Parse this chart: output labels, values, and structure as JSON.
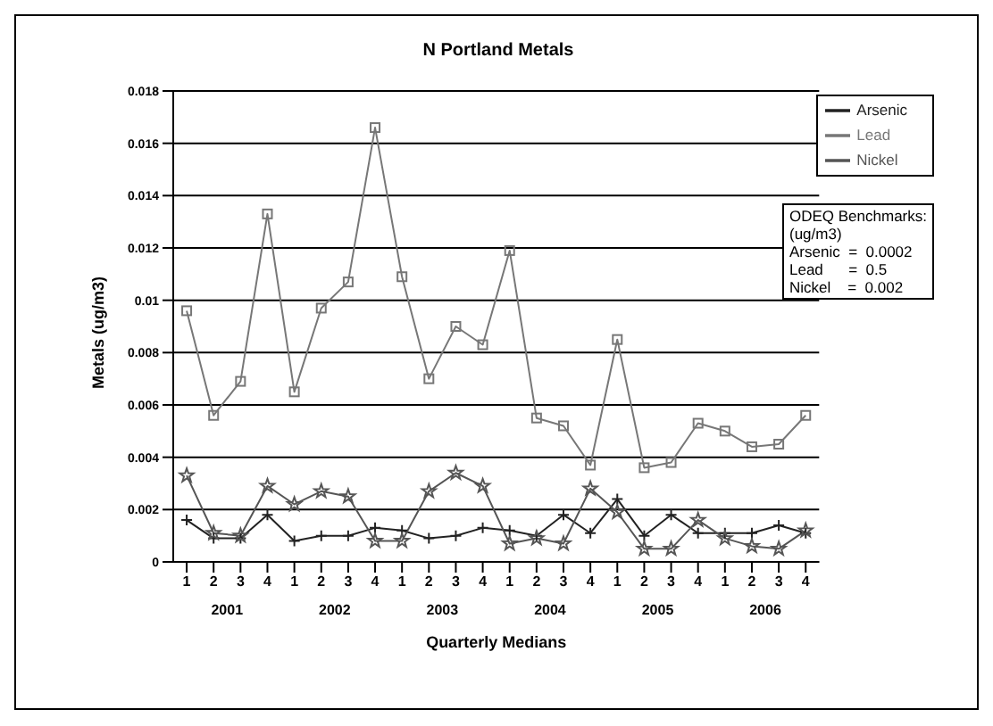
{
  "chart_data": {
    "type": "line",
    "title": "N Portland Metals",
    "xlabel": "Quarterly Medians",
    "ylabel": "Metals (ug/m3)",
    "categories": [
      "1",
      "2",
      "3",
      "4",
      "1",
      "2",
      "3",
      "4",
      "1",
      "2",
      "3",
      "4",
      "1",
      "2",
      "3",
      "4",
      "1",
      "2",
      "3",
      "4",
      "1",
      "2",
      "3",
      "4"
    ],
    "series": [
      {
        "name": "Arsenic",
        "color": "#222222",
        "marker": "cross",
        "values": [
          0.0016,
          0.0009,
          0.0009,
          0.0018,
          0.0008,
          0.001,
          0.001,
          0.0013,
          0.0012,
          0.0009,
          0.001,
          0.0013,
          0.0012,
          0.001,
          0.0018,
          0.0011,
          0.0024,
          0.001,
          0.0018,
          0.0011,
          0.0011,
          0.0011,
          0.0014,
          0.0011
        ]
      },
      {
        "name": "Lead",
        "color": "#777777",
        "marker": "square",
        "values": [
          0.0096,
          0.0056,
          0.0069,
          0.0133,
          0.0065,
          0.0097,
          0.0107,
          0.0166,
          0.0109,
          0.007,
          0.009,
          0.0083,
          0.0119,
          0.0055,
          0.0052,
          0.0037,
          0.0085,
          0.0036,
          0.0038,
          0.0053,
          0.005,
          0.0044,
          0.0045,
          0.0056
        ]
      },
      {
        "name": "Nickel",
        "color": "#555555",
        "marker": "star",
        "values": [
          0.0033,
          0.0011,
          0.001,
          0.0029,
          0.0022,
          0.0027,
          0.0025,
          0.0008,
          0.0008,
          0.0027,
          0.0034,
          0.0029,
          0.0007,
          0.0009,
          0.0007,
          0.0028,
          0.0019,
          0.0005,
          0.0005,
          0.0016,
          0.0009,
          0.0006,
          0.0005,
          0.0012
        ]
      }
    ],
    "ylim": [
      0,
      0.018
    ],
    "yticks": [
      0,
      0.002,
      0.004,
      0.006,
      0.008,
      0.01,
      0.012,
      0.014,
      0.016,
      0.018
    ],
    "grid": "y",
    "legend": "top right",
    "annotations": [
      "2001",
      "2002",
      "2003",
      "2004",
      "2005",
      "2006",
      "ODEQ Benchmarks:",
      "(ug/m3)",
      "Arsenic  =  0.0002",
      "Lead      =  0.5",
      "Nickel    =  0.002"
    ]
  }
}
